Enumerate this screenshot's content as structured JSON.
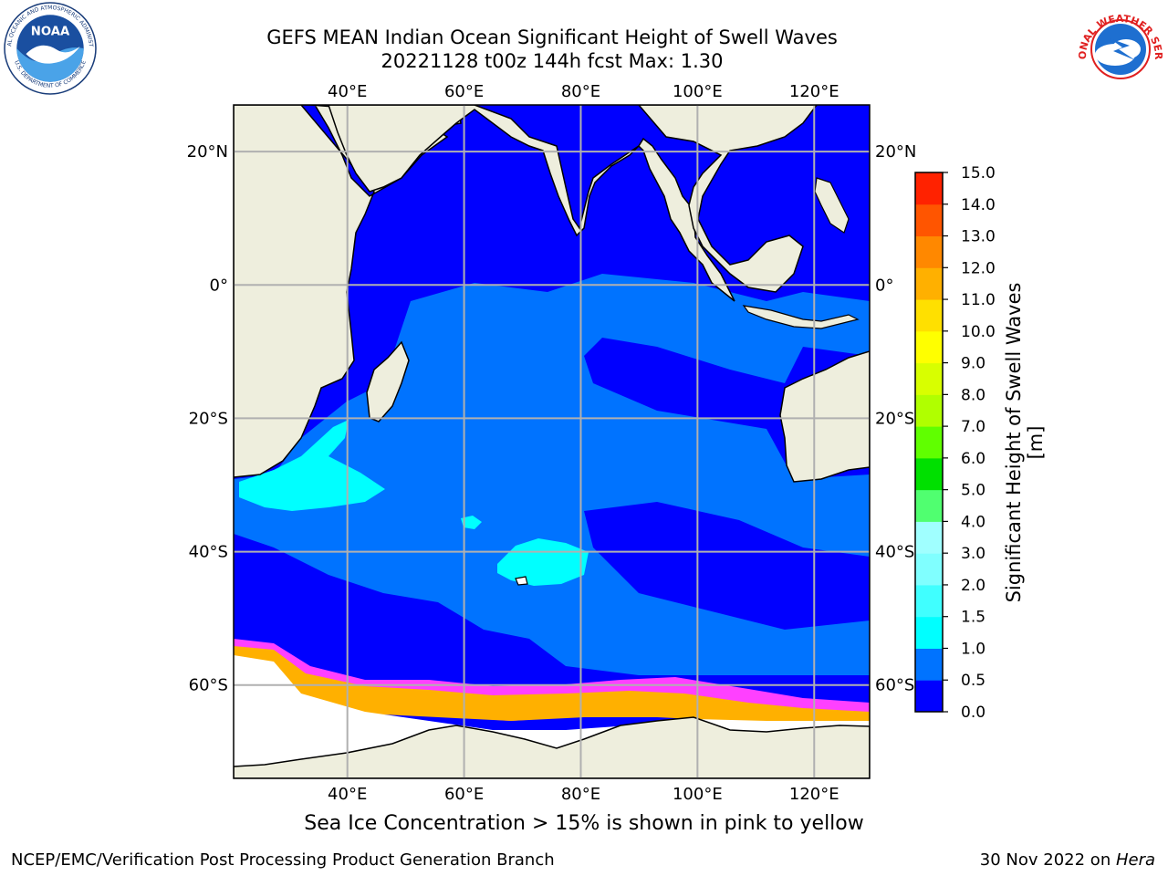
{
  "title_line1": "GEFS MEAN Indian Ocean Significant Height of Swell Waves",
  "title_line2": "20221128 t00z 144h fcst   Max: 1.30",
  "caption": "Sea Ice Concentration > 15% is shown in pink to yellow",
  "footer_left": "NCEP/EMC/Verification Post Processing Product Generation Branch",
  "footer_right_prefix": "30 Nov 2022 on ",
  "footer_right_host": "Hera",
  "logos": {
    "left": {
      "icon": "noaa-logo",
      "text_top": "NATIONAL OCEANIC AND ATMOSPHERIC ADMINISTRATION",
      "text_bottom": "U.S. DEPARTMENT OF COMMERCE",
      "center": "NOAA"
    },
    "right": {
      "icon": "nws-logo",
      "text": "NATIONAL WEATHER SERVICE"
    }
  },
  "chart_data": {
    "type": "heatmap",
    "title": "GEFS MEAN Indian Ocean Significant Height of Swell Waves",
    "subtitle": "20221128 t00z 144h fcst   Max: 1.30",
    "max_value": 1.3,
    "x_axis": {
      "ticks": [
        "40°E",
        "60°E",
        "80°E",
        "100°E",
        "120°E"
      ],
      "tick_values": [
        40,
        60,
        80,
        100,
        120
      ],
      "range": [
        20.5,
        129.5
      ]
    },
    "y_axis": {
      "ticks": [
        "20°N",
        "0°",
        "20°S",
        "40°S",
        "60°S"
      ],
      "tick_values": [
        20,
        0,
        -20,
        -40,
        -60
      ],
      "range": [
        -74,
        27
      ]
    },
    "grid": true,
    "colorbar": {
      "label": "Significant Height of Swell Waves [m]",
      "range": [
        0,
        15
      ],
      "ticks": [
        "0.0",
        "0.5",
        "1.0",
        "1.5",
        "2.0",
        "3.0",
        "4.0",
        "5.0",
        "6.0",
        "7.0",
        "8.0",
        "9.0",
        "10.0",
        "11.0",
        "12.0",
        "13.0",
        "14.0",
        "15.0"
      ],
      "tick_values": [
        0,
        0.5,
        1,
        1.5,
        2,
        3,
        4,
        5,
        6,
        7,
        8,
        9,
        10,
        11,
        12,
        13,
        14,
        15
      ],
      "colors": [
        "#0000ff",
        "#0073ff",
        "#00ffff",
        "#40ffff",
        "#80ffff",
        "#a0ffff",
        "#50ff70",
        "#00e000",
        "#60ff00",
        "#b0ff00",
        "#d8ff00",
        "#ffff00",
        "#ffe000",
        "#ffb000",
        "#ff8800",
        "#ff5500",
        "#ff2200"
      ]
    },
    "regions": [
      {
        "name": "northern Indian Ocean",
        "value_range": [
          0.0,
          0.5
        ]
      },
      {
        "name": "central Indian Ocean",
        "value_range": [
          0.5,
          1.0
        ]
      },
      {
        "name": "southwest of Madagascar",
        "value_range": [
          1.0,
          1.3
        ]
      },
      {
        "name": "south central Indian Ocean near 45°S 70°E",
        "value_range": [
          1.0,
          1.3
        ]
      },
      {
        "name": "Southern Ocean band 45°S–60°S",
        "value_range": [
          0.0,
          0.5
        ]
      }
    ],
    "sea_ice": {
      "threshold_percent": 15,
      "color_range": [
        "#ff40ff",
        "#ffb000",
        "#ffff00"
      ]
    }
  }
}
